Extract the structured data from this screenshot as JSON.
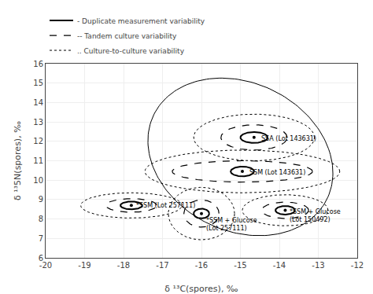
{
  "chart_data": {
    "type": "ellipse",
    "xlabel": "δ ¹³C(spores), ‰",
    "ylabel": "δ ¹³5N(spores), ‰",
    "xlim": [
      -20,
      -12
    ],
    "ylim": [
      6,
      16
    ],
    "xticks": [
      -20,
      -19,
      -18,
      -17,
      -16,
      -15,
      -14,
      -13,
      -12
    ],
    "yticks": [
      6,
      7,
      8,
      9,
      10,
      11,
      12,
      13,
      14,
      15,
      16
    ],
    "grid": true,
    "legend": "upper left",
    "color": "#000000",
    "series": [
      {
        "name": "- Duplicate measurement variability",
        "line_style": "solid"
      },
      {
        "name": "-- Tandem culture variability",
        "line_style": "dashed"
      },
      {
        "name": ".. Culture-to-culture variability",
        "line_style": "dotted"
      }
    ],
    "groups": [
      {
        "label": "*SSM (Lot 257111)",
        "cx": -17.8,
        "cy": 8.7,
        "label_x": -17.72,
        "label_y": 8.7,
        "ellipses": [
          {
            "rx": 0.28,
            "ry": 0.2,
            "angle": 0,
            "line_style": "solid"
          },
          {
            "rx": 0.65,
            "ry": 0.35,
            "angle": 0,
            "line_style": "dashed"
          },
          {
            "rx": 1.3,
            "ry": 0.65,
            "angle": 0,
            "line_style": "dotted"
          }
        ]
      },
      {
        "label": "*SSM + Glucose\n(Lot 257111)",
        "cx": -16.0,
        "cy": 8.28,
        "label_x": -15.92,
        "label_y": 7.73,
        "ellipses": [
          {
            "rx": 0.2,
            "ry": 0.25,
            "angle": 0,
            "line_style": "solid"
          },
          {
            "rx": 0.45,
            "ry": 0.7,
            "angle": 0,
            "line_style": "dashed"
          },
          {
            "rx": 0.85,
            "ry": 1.35,
            "angle": 0,
            "line_style": "dotted"
          }
        ]
      },
      {
        "label": "*SSM + Glucose\n(Lot 150492)",
        "cx": -13.85,
        "cy": 8.45,
        "label_x": -13.77,
        "label_y": 8.15,
        "ellipses": [
          {
            "rx": 0.25,
            "ry": 0.22,
            "angle": 0,
            "line_style": "solid"
          },
          {
            "rx": 0.6,
            "ry": 0.42,
            "angle": 0,
            "line_style": "dashed"
          },
          {
            "rx": 1.1,
            "ry": 0.8,
            "angle": 0,
            "line_style": "dotted"
          }
        ]
      },
      {
        "label": "SSM (Lot 143631)",
        "cx": -14.95,
        "cy": 10.45,
        "label_x": -14.8,
        "label_y": 10.4,
        "ellipses": [
          {
            "rx": 0.3,
            "ry": 0.25,
            "angle": 0,
            "line_style": "solid"
          },
          {
            "rx": 1.8,
            "ry": 0.55,
            "angle": 0,
            "line_style": "dashed"
          },
          {
            "rx": 2.5,
            "ry": 1.1,
            "angle": 0,
            "line_style": "dotted"
          }
        ]
      },
      {
        "label": "SSA (Lot 143631)",
        "cx": -14.65,
        "cy": 12.2,
        "label_x": -14.5,
        "label_y": 12.15,
        "ellipses": [
          {
            "rx": 0.35,
            "ry": 0.28,
            "angle": 0,
            "line_style": "solid"
          },
          {
            "rx": 0.85,
            "ry": 0.65,
            "angle": 0,
            "line_style": "dashed"
          },
          {
            "rx": 1.55,
            "ry": 1.2,
            "angle": 0,
            "line_style": "dotted"
          }
        ]
      }
    ],
    "outer_ellipse": {
      "cx": -15.0,
      "cy": 11.2,
      "rx": 2.3,
      "ry": 4.1,
      "angle": 10,
      "line_style": "solid"
    }
  }
}
